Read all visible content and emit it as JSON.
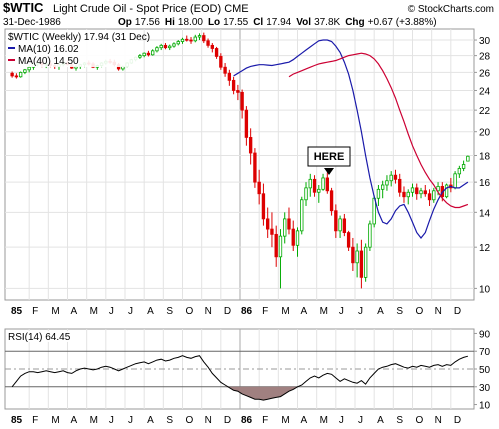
{
  "header": {
    "symbol": "$WTIC",
    "name": "Light Crude Oil - Spot Price (EOD)",
    "exchange": "CME",
    "copyright": "© StockCharts.com",
    "date": "31-Dec-1986",
    "op_label": "Op",
    "op": "17.56",
    "hi_label": "Hi",
    "hi": "18.00",
    "lo_label": "Lo",
    "lo": "17.55",
    "cl_label": "Cl",
    "cl": "17.94",
    "vol_label": "Vol",
    "vol": "37.8K",
    "chg_label": "Chg",
    "chg": "+0.67 (+3.88%)"
  },
  "legend": {
    "title": "$WTIC (Weekly) 17.94 (31 Dec)",
    "ma10": "MA(10) 16.02",
    "ma40": "MA(40) 14.50"
  },
  "annotation": "HERE",
  "rsi_label": "RSI(14) 64.45",
  "colors": {
    "up": "#00aa00",
    "down": "#dd0000",
    "ma10": "#1a1aaa",
    "ma40": "#cc0033",
    "rsi": "#000000",
    "rsi_fill": "#a08080",
    "grid": "#e3e3e3",
    "frame": "#999999"
  },
  "chart_data": [
    {
      "type": "candlestick",
      "title": "$WTIC (Weekly)",
      "y_scale": "log",
      "ylim": [
        9.5,
        31.5
      ],
      "y_ticks": [
        10,
        12,
        14,
        16,
        18,
        20,
        22,
        24,
        26,
        28,
        30
      ],
      "x_tick_labels": [
        "85",
        "F",
        "M",
        "A",
        "M",
        "J",
        "J",
        "A",
        "S",
        "O",
        "N",
        "D",
        "86",
        "F",
        "M",
        "A",
        "M",
        "J",
        "J",
        "A",
        "S",
        "O",
        "N",
        "D"
      ],
      "ohlc": [
        [
          25.9,
          26.1,
          25.4,
          25.6
        ],
        [
          25.6,
          25.9,
          25.3,
          25.5
        ],
        [
          25.5,
          26.1,
          25.4,
          26.0
        ],
        [
          26.0,
          26.4,
          25.8,
          26.3
        ],
        [
          26.3,
          26.8,
          26.0,
          26.6
        ],
        [
          26.6,
          27.1,
          26.3,
          27.0
        ],
        [
          27.0,
          27.3,
          26.7,
          27.1
        ],
        [
          27.1,
          27.4,
          26.6,
          26.9
        ],
        [
          26.9,
          27.2,
          26.5,
          27.0
        ],
        [
          27.0,
          27.3,
          26.6,
          26.8
        ],
        [
          26.8,
          27.1,
          26.4,
          26.7
        ],
        [
          26.7,
          27.1,
          26.3,
          26.9
        ],
        [
          26.9,
          27.3,
          26.7,
          27.1
        ],
        [
          27.1,
          27.4,
          26.8,
          26.9
        ],
        [
          26.9,
          27.1,
          26.4,
          26.5
        ],
        [
          26.5,
          26.9,
          26.2,
          26.7
        ],
        [
          26.7,
          27.0,
          26.4,
          26.9
        ],
        [
          26.9,
          27.2,
          26.6,
          27.1
        ],
        [
          27.1,
          27.4,
          26.8,
          27.0
        ],
        [
          27.0,
          27.2,
          26.5,
          26.6
        ],
        [
          26.6,
          26.9,
          26.3,
          26.8
        ],
        [
          26.8,
          27.2,
          26.6,
          27.1
        ],
        [
          27.1,
          27.5,
          26.9,
          27.3
        ],
        [
          27.3,
          27.6,
          27.0,
          27.2
        ],
        [
          27.2,
          27.5,
          26.7,
          26.9
        ],
        [
          26.9,
          27.1,
          26.2,
          26.4
        ],
        [
          26.4,
          26.8,
          26.2,
          26.7
        ],
        [
          26.7,
          27.2,
          26.6,
          27.1
        ],
        [
          27.1,
          27.6,
          27.0,
          27.5
        ],
        [
          27.5,
          27.9,
          27.3,
          27.8
        ],
        [
          27.8,
          28.2,
          27.6,
          28.0
        ],
        [
          28.0,
          28.4,
          27.8,
          28.3
        ],
        [
          28.3,
          28.6,
          27.9,
          28.1
        ],
        [
          28.1,
          28.8,
          28.0,
          28.6
        ],
        [
          28.6,
          29.2,
          28.4,
          29.0
        ],
        [
          29.0,
          29.5,
          28.7,
          29.3
        ],
        [
          29.3,
          29.6,
          28.8,
          29.0
        ],
        [
          29.0,
          29.4,
          28.7,
          29.2
        ],
        [
          29.2,
          29.7,
          29.0,
          29.5
        ],
        [
          29.5,
          30.0,
          29.3,
          29.8
        ],
        [
          29.8,
          30.3,
          29.5,
          30.1
        ],
        [
          30.1,
          30.6,
          29.8,
          30.0
        ],
        [
          30.0,
          30.4,
          29.5,
          29.9
        ],
        [
          29.9,
          30.7,
          29.7,
          30.4
        ],
        [
          30.4,
          30.9,
          30.0,
          30.6
        ],
        [
          30.6,
          31.0,
          29.6,
          29.9
        ],
        [
          29.9,
          30.2,
          29.0,
          29.3
        ],
        [
          29.3,
          29.6,
          28.4,
          28.9
        ],
        [
          28.9,
          29.1,
          27.6,
          27.9
        ],
        [
          27.9,
          28.3,
          26.3,
          26.6
        ],
        [
          26.6,
          27.1,
          25.5,
          25.9
        ],
        [
          25.9,
          26.3,
          24.5,
          25.1
        ],
        [
          25.1,
          25.5,
          23.6,
          24.0
        ],
        [
          24.0,
          24.6,
          23.0,
          23.8
        ],
        [
          23.8,
          24.1,
          21.2,
          22.0
        ],
        [
          22.0,
          22.4,
          18.8,
          19.5
        ],
        [
          19.5,
          20.3,
          17.3,
          18.2
        ],
        [
          18.2,
          18.6,
          15.6,
          16.0
        ],
        [
          16.0,
          16.9,
          14.5,
          15.2
        ],
        [
          15.2,
          15.9,
          13.2,
          13.6
        ],
        [
          13.6,
          14.3,
          12.5,
          13.0
        ],
        [
          13.0,
          14.0,
          12.0,
          12.7
        ],
        [
          12.7,
          13.2,
          11.0,
          11.5
        ],
        [
          11.5,
          13.0,
          10.0,
          12.6
        ],
        [
          12.6,
          14.0,
          12.2,
          13.6
        ],
        [
          13.6,
          14.3,
          12.7,
          13.0
        ],
        [
          13.0,
          13.5,
          11.8,
          12.1
        ],
        [
          12.1,
          13.1,
          11.5,
          12.9
        ],
        [
          12.9,
          15.0,
          12.7,
          14.8
        ],
        [
          14.8,
          16.0,
          14.4,
          15.6
        ],
        [
          15.6,
          16.6,
          15.0,
          16.2
        ],
        [
          16.2,
          16.5,
          15.0,
          15.3
        ],
        [
          15.3,
          15.8,
          14.6,
          15.5
        ],
        [
          15.5,
          16.6,
          15.4,
          16.3
        ],
        [
          16.3,
          16.7,
          15.2,
          15.4
        ],
        [
          15.4,
          15.6,
          13.8,
          14.1
        ],
        [
          14.1,
          14.5,
          12.5,
          12.9
        ],
        [
          12.9,
          13.8,
          12.5,
          13.6
        ],
        [
          13.6,
          13.9,
          12.6,
          12.8
        ],
        [
          12.8,
          12.9,
          11.8,
          12.0
        ],
        [
          12.0,
          12.5,
          10.8,
          11.2
        ],
        [
          11.2,
          12.2,
          10.5,
          11.8
        ],
        [
          11.8,
          12.4,
          10.0,
          10.5
        ],
        [
          10.5,
          12.2,
          10.3,
          12.0
        ],
        [
          12.0,
          13.5,
          11.8,
          13.3
        ],
        [
          13.3,
          15.1,
          13.1,
          14.9
        ],
        [
          14.9,
          15.8,
          14.4,
          15.5
        ],
        [
          15.5,
          16.1,
          14.9,
          15.8
        ],
        [
          15.8,
          16.5,
          15.4,
          16.1
        ],
        [
          16.1,
          16.8,
          15.7,
          16.5
        ],
        [
          16.5,
          16.9,
          15.9,
          16.2
        ],
        [
          16.2,
          16.6,
          15.0,
          15.3
        ],
        [
          15.3,
          15.7,
          14.6,
          15.0
        ],
        [
          15.0,
          15.5,
          14.5,
          15.3
        ],
        [
          15.3,
          15.9,
          15.0,
          15.6
        ],
        [
          15.6,
          15.9,
          14.8,
          15.2
        ],
        [
          15.2,
          15.6,
          14.9,
          15.4
        ],
        [
          15.4,
          15.8,
          15.0,
          15.2
        ],
        [
          15.2,
          15.5,
          14.4,
          14.8
        ],
        [
          14.8,
          15.6,
          14.6,
          15.4
        ],
        [
          15.4,
          16.0,
          15.1,
          15.7
        ],
        [
          15.7,
          16.0,
          14.7,
          15.0
        ],
        [
          15.0,
          15.9,
          14.9,
          15.8
        ],
        [
          15.8,
          16.3,
          15.3,
          15.6
        ],
        [
          15.6,
          16.8,
          15.5,
          16.6
        ],
        [
          16.6,
          17.2,
          16.3,
          17.0
        ],
        [
          17.0,
          17.6,
          16.8,
          17.3
        ],
        [
          17.56,
          18.0,
          17.55,
          17.94
        ]
      ],
      "ma10": [
        25.6,
        25.9,
        26.2,
        26.5,
        26.7,
        26.8,
        26.9,
        26.9,
        26.85,
        26.8,
        26.9,
        27.0,
        27.1,
        27.2,
        27.5,
        27.9,
        28.3,
        28.7,
        29.1,
        29.5,
        29.9,
        30.0,
        30.0,
        29.8,
        29.2,
        28.4,
        27.2,
        25.8,
        24.0,
        22.0,
        20.0,
        18.0,
        16.3,
        15.0,
        14.0,
        13.4,
        13.3,
        13.6,
        14.1,
        14.4,
        14.5,
        14.0,
        13.4,
        12.8,
        12.5,
        12.8,
        13.5,
        14.2,
        14.8,
        15.3,
        15.6,
        15.7,
        15.6,
        15.6,
        15.8,
        16.0
      ],
      "ma40": [
        25.5,
        25.8,
        26.0,
        26.2,
        26.4,
        26.6,
        26.8,
        27.0,
        27.1,
        27.2,
        27.3,
        27.4,
        27.6,
        27.8,
        28.0,
        28.1,
        28.2,
        28.3,
        28.2,
        28.0,
        27.6,
        27.0,
        26.2,
        25.3,
        24.3,
        23.2,
        22.0,
        20.9,
        19.8,
        18.8,
        18.0,
        17.3,
        16.7,
        16.2,
        15.8,
        15.3,
        14.9,
        14.6,
        14.4,
        14.3,
        14.3,
        14.4,
        14.5
      ],
      "annotations": [
        "HERE"
      ]
    },
    {
      "type": "line",
      "title": "RSI(14)",
      "ylim": [
        5,
        95
      ],
      "y_ticks": [
        10,
        30,
        50,
        70,
        90
      ],
      "reference_lines": [
        30,
        50,
        70
      ],
      "x_tick_labels": [
        "85",
        "F",
        "M",
        "A",
        "M",
        "J",
        "J",
        "A",
        "S",
        "O",
        "N",
        "D",
        "86",
        "F",
        "M",
        "A",
        "M",
        "J",
        "J",
        "A",
        "S",
        "O",
        "N",
        "D"
      ],
      "rsi": [
        30,
        36,
        42,
        45,
        47,
        47,
        46,
        47,
        48,
        47,
        46,
        47,
        48,
        46,
        45,
        48,
        50,
        51,
        50,
        49,
        50,
        52,
        53,
        52,
        50,
        48,
        50,
        52,
        54,
        56,
        57,
        58,
        56,
        58,
        60,
        61,
        59,
        60,
        62,
        63,
        65,
        63,
        62,
        64,
        65,
        58,
        52,
        45,
        40,
        35,
        32,
        29,
        26,
        25,
        22,
        20,
        18,
        16,
        16,
        15,
        16,
        17,
        18,
        19,
        22,
        25,
        27,
        30,
        32,
        36,
        40,
        42,
        40,
        43,
        45,
        44,
        40,
        36,
        39,
        37,
        35,
        34,
        37,
        33,
        40,
        45,
        50,
        52,
        53,
        55,
        56,
        54,
        52,
        51,
        53,
        52,
        54,
        53,
        52,
        54,
        55,
        53,
        55,
        54,
        58,
        61,
        63,
        64.45
      ]
    }
  ]
}
